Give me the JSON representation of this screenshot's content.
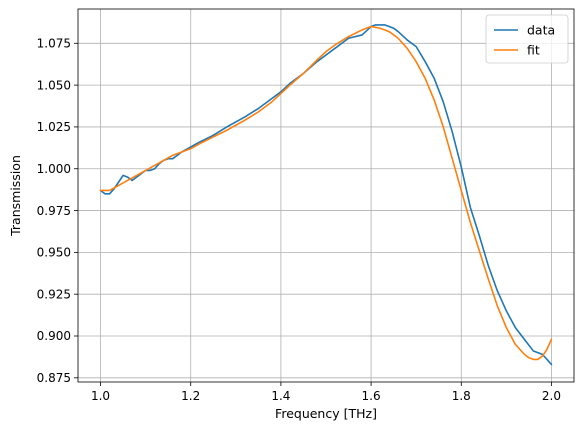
{
  "chart_data": {
    "type": "line",
    "title": "",
    "xlabel": "Frequency [THz]",
    "ylabel": "Transmission",
    "xlim": [
      0.95,
      2.05
    ],
    "ylim": [
      0.8725,
      1.0955
    ],
    "xticks": [
      1.0,
      1.2,
      1.4,
      1.6,
      1.8,
      2.0
    ],
    "xtick_labels": [
      "1.0",
      "1.2",
      "1.4",
      "1.6",
      "1.8",
      "2.0"
    ],
    "yticks": [
      0.875,
      0.9,
      0.925,
      0.95,
      0.975,
      1.0,
      1.025,
      1.05,
      1.075
    ],
    "ytick_labels": [
      "0.875",
      "0.900",
      "0.925",
      "0.950",
      "0.975",
      "1.000",
      "1.025",
      "1.050",
      "1.075"
    ],
    "grid": true,
    "legend": "top-right",
    "series": [
      {
        "name": "data",
        "color": "#1f77b4",
        "x": [
          1.0,
          1.01,
          1.02,
          1.03,
          1.04,
          1.05,
          1.06,
          1.07,
          1.08,
          1.09,
          1.1,
          1.11,
          1.12,
          1.13,
          1.14,
          1.15,
          1.16,
          1.17,
          1.18,
          1.2,
          1.22,
          1.25,
          1.28,
          1.3,
          1.32,
          1.35,
          1.38,
          1.4,
          1.42,
          1.45,
          1.48,
          1.5,
          1.52,
          1.55,
          1.58,
          1.6,
          1.61,
          1.62,
          1.63,
          1.64,
          1.65,
          1.66,
          1.68,
          1.7,
          1.72,
          1.74,
          1.76,
          1.78,
          1.8,
          1.82,
          1.84,
          1.86,
          1.88,
          1.9,
          1.92,
          1.94,
          1.96,
          1.98,
          2.0
        ],
        "y": [
          0.987,
          0.985,
          0.985,
          0.988,
          0.992,
          0.996,
          0.995,
          0.993,
          0.995,
          0.997,
          0.999,
          0.999,
          1.0,
          1.003,
          1.005,
          1.006,
          1.006,
          1.008,
          1.01,
          1.013,
          1.016,
          1.02,
          1.025,
          1.028,
          1.031,
          1.036,
          1.042,
          1.046,
          1.051,
          1.057,
          1.064,
          1.068,
          1.072,
          1.078,
          1.08,
          1.085,
          1.086,
          1.086,
          1.086,
          1.085,
          1.084,
          1.082,
          1.077,
          1.073,
          1.064,
          1.054,
          1.04,
          1.022,
          1.001,
          0.977,
          0.96,
          0.942,
          0.927,
          0.915,
          0.905,
          0.898,
          0.891,
          0.889,
          0.883
        ]
      },
      {
        "name": "fit",
        "color": "#ff7f0e",
        "x": [
          1.0,
          1.02,
          1.04,
          1.06,
          1.08,
          1.1,
          1.12,
          1.14,
          1.16,
          1.18,
          1.2,
          1.22,
          1.25,
          1.28,
          1.3,
          1.32,
          1.35,
          1.38,
          1.4,
          1.42,
          1.45,
          1.48,
          1.5,
          1.52,
          1.55,
          1.58,
          1.6,
          1.62,
          1.64,
          1.66,
          1.68,
          1.7,
          1.72,
          1.74,
          1.76,
          1.78,
          1.8,
          1.82,
          1.84,
          1.86,
          1.88,
          1.9,
          1.92,
          1.94,
          1.95,
          1.96,
          1.97,
          1.98,
          1.99,
          2.0
        ],
        "y": [
          0.987,
          0.987,
          0.99,
          0.993,
          0.996,
          0.999,
          1.002,
          1.005,
          1.008,
          1.01,
          1.012,
          1.015,
          1.019,
          1.023,
          1.026,
          1.029,
          1.034,
          1.04,
          1.045,
          1.05,
          1.057,
          1.065,
          1.07,
          1.074,
          1.079,
          1.083,
          1.085,
          1.084,
          1.082,
          1.078,
          1.072,
          1.064,
          1.054,
          1.041,
          1.025,
          1.006,
          0.987,
          0.968,
          0.951,
          0.934,
          0.918,
          0.905,
          0.895,
          0.889,
          0.887,
          0.886,
          0.886,
          0.888,
          0.892,
          0.898
        ]
      }
    ]
  }
}
